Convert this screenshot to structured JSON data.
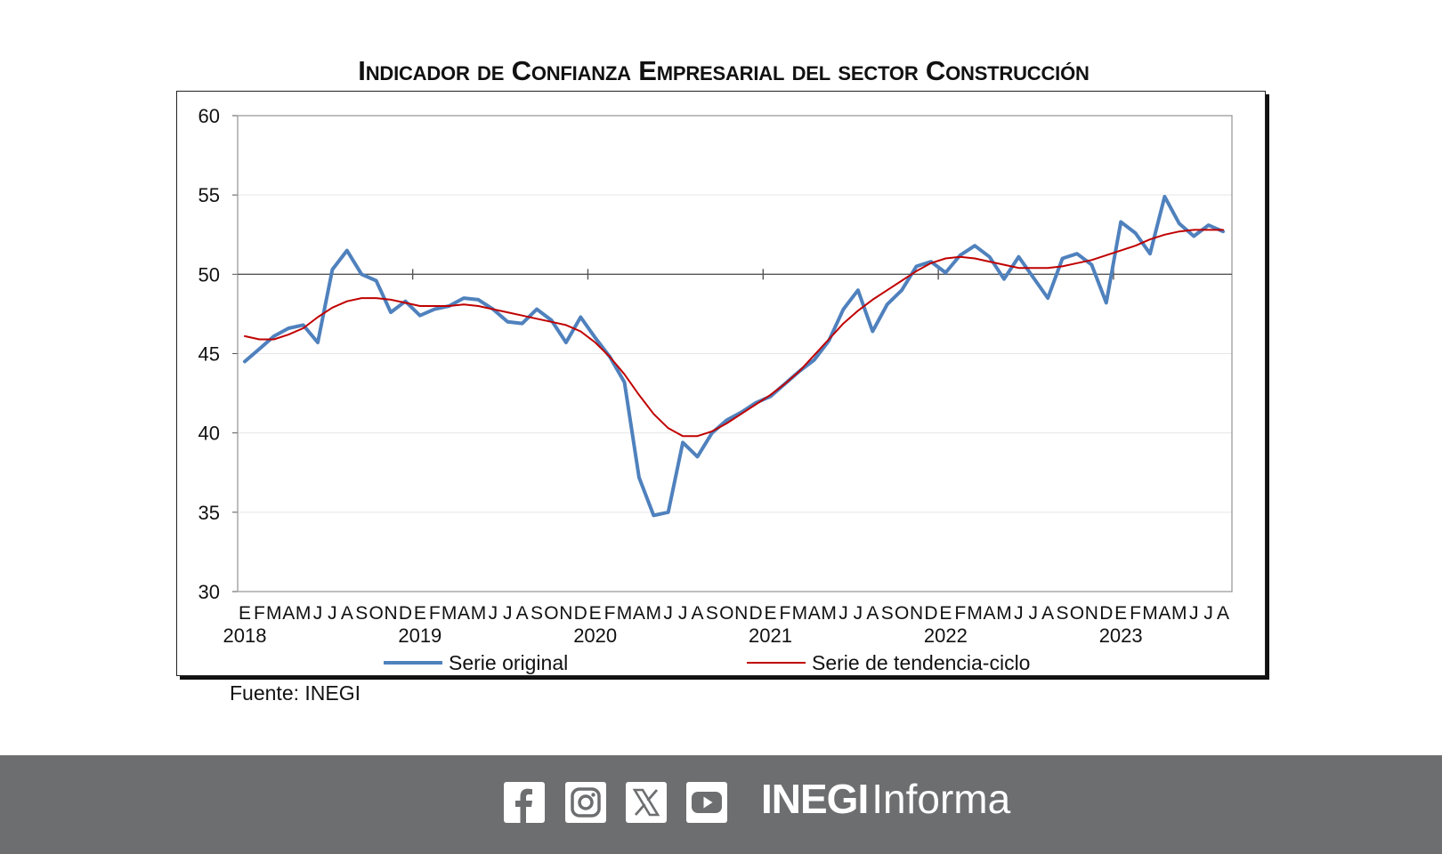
{
  "chart_data": {
    "type": "line",
    "title": "Indicador de Confianza Empresarial del sector Construcción",
    "ylim": [
      30,
      60
    ],
    "yticks": [
      30,
      35,
      40,
      45,
      50,
      55,
      60
    ],
    "reference_line": 50,
    "grid": true,
    "legend_position": "bottom",
    "month_labels": [
      "E",
      "F",
      "M",
      "A",
      "M",
      "J",
      "J",
      "A",
      "S",
      "O",
      "N",
      "D",
      "E",
      "F",
      "M",
      "A",
      "M",
      "J",
      "J",
      "A",
      "S",
      "O",
      "N",
      "D",
      "E",
      "F",
      "M",
      "A",
      "M",
      "J",
      "J",
      "A",
      "S",
      "O",
      "N",
      "D",
      "E",
      "F",
      "M",
      "A",
      "M",
      "J",
      "J",
      "A",
      "S",
      "O",
      "N",
      "D",
      "E",
      "F",
      "M",
      "A",
      "M",
      "J",
      "J",
      "A",
      "S",
      "O",
      "N",
      "D",
      "E",
      "F",
      "M",
      "A",
      "M",
      "J",
      "J",
      "A"
    ],
    "year_labels": [
      "2018",
      "2019",
      "2020",
      "2021",
      "2022",
      "2023"
    ],
    "series": [
      {
        "name": "Serie original",
        "color": "#4f81bd",
        "values": [
          44.5,
          45.3,
          46.1,
          46.6,
          46.8,
          45.7,
          50.3,
          51.5,
          50.0,
          49.6,
          47.6,
          48.3,
          47.4,
          47.8,
          48.0,
          48.5,
          48.4,
          47.8,
          47.0,
          46.9,
          47.8,
          47.1,
          45.7,
          47.3,
          46.0,
          44.8,
          43.2,
          37.2,
          34.8,
          35.0,
          39.4,
          38.5,
          40.0,
          40.8,
          41.3,
          41.9,
          42.3,
          43.1,
          43.9,
          44.6,
          45.8,
          47.8,
          49.0,
          46.4,
          48.1,
          49.0,
          50.5,
          50.8,
          50.1,
          51.2,
          51.8,
          51.1,
          49.7,
          51.1,
          49.8,
          48.5,
          51.0,
          51.3,
          50.6,
          48.2,
          53.3,
          52.6,
          51.3,
          54.9,
          53.2,
          52.4,
          53.1,
          52.7
        ]
      },
      {
        "name": "Serie de tendencia-ciclo",
        "color": "#c00000",
        "values": [
          46.1,
          45.9,
          45.9,
          46.2,
          46.6,
          47.3,
          47.9,
          48.3,
          48.5,
          48.5,
          48.4,
          48.2,
          48.0,
          48.0,
          48.0,
          48.1,
          48.0,
          47.8,
          47.6,
          47.4,
          47.2,
          47.0,
          46.8,
          46.4,
          45.7,
          44.8,
          43.7,
          42.4,
          41.2,
          40.3,
          39.8,
          39.8,
          40.1,
          40.6,
          41.2,
          41.8,
          42.4,
          43.1,
          43.9,
          44.9,
          45.9,
          46.9,
          47.7,
          48.4,
          49.0,
          49.6,
          50.2,
          50.7,
          51.0,
          51.1,
          51.0,
          50.8,
          50.6,
          50.4,
          50.4,
          50.4,
          50.5,
          50.7,
          50.9,
          51.2,
          51.5,
          51.8,
          52.2,
          52.5,
          52.7,
          52.8,
          52.8,
          52.8
        ]
      }
    ]
  },
  "source_note": "Fuente: INEGI",
  "footer": {
    "brand_bold": "INEGI",
    "brand_light": "Informa",
    "icons": [
      "facebook-icon",
      "instagram-icon",
      "x-icon",
      "youtube-icon"
    ]
  }
}
